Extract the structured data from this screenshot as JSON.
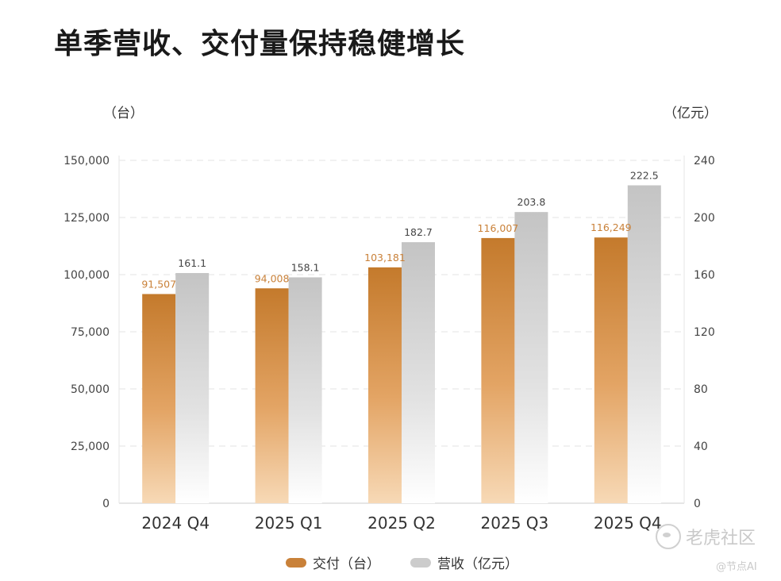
{
  "title": "单季营收、交付量保持稳健增长",
  "watermark": {
    "main": "老虎社区",
    "sub": "@节点AI"
  },
  "colors": {
    "deliveries": "#c98139",
    "revenue": "#c8c8c8"
  },
  "chart_data": {
    "type": "bar",
    "categories": [
      "2024 Q4",
      "2025 Q1",
      "2025 Q2",
      "2025 Q3",
      "2025 Q4"
    ],
    "left_axis": {
      "unit": "（台）",
      "ticks": [
        "0",
        "25,000",
        "50,000",
        "75,000",
        "100,000",
        "125,000",
        "150,000"
      ],
      "range": [
        0,
        150000
      ]
    },
    "right_axis": {
      "unit": "（亿元）",
      "ticks": [
        "0",
        "40",
        "80",
        "120",
        "160",
        "200",
        "240"
      ],
      "range": [
        0,
        240
      ]
    },
    "series": [
      {
        "name": "交付（台）",
        "axis": "left",
        "values": [
          91507,
          94008,
          103181,
          116007,
          116249
        ],
        "labels": [
          "91,507",
          "94,008",
          "103,181",
          "116,007",
          "116,249"
        ]
      },
      {
        "name": "营收（亿元）",
        "axis": "right",
        "values": [
          161.1,
          158.1,
          182.7,
          203.8,
          222.5
        ],
        "labels": [
          "161.1",
          "158.1",
          "182.7",
          "203.8",
          "222.5"
        ]
      }
    ],
    "grid": true,
    "legend_position": "bottom"
  }
}
